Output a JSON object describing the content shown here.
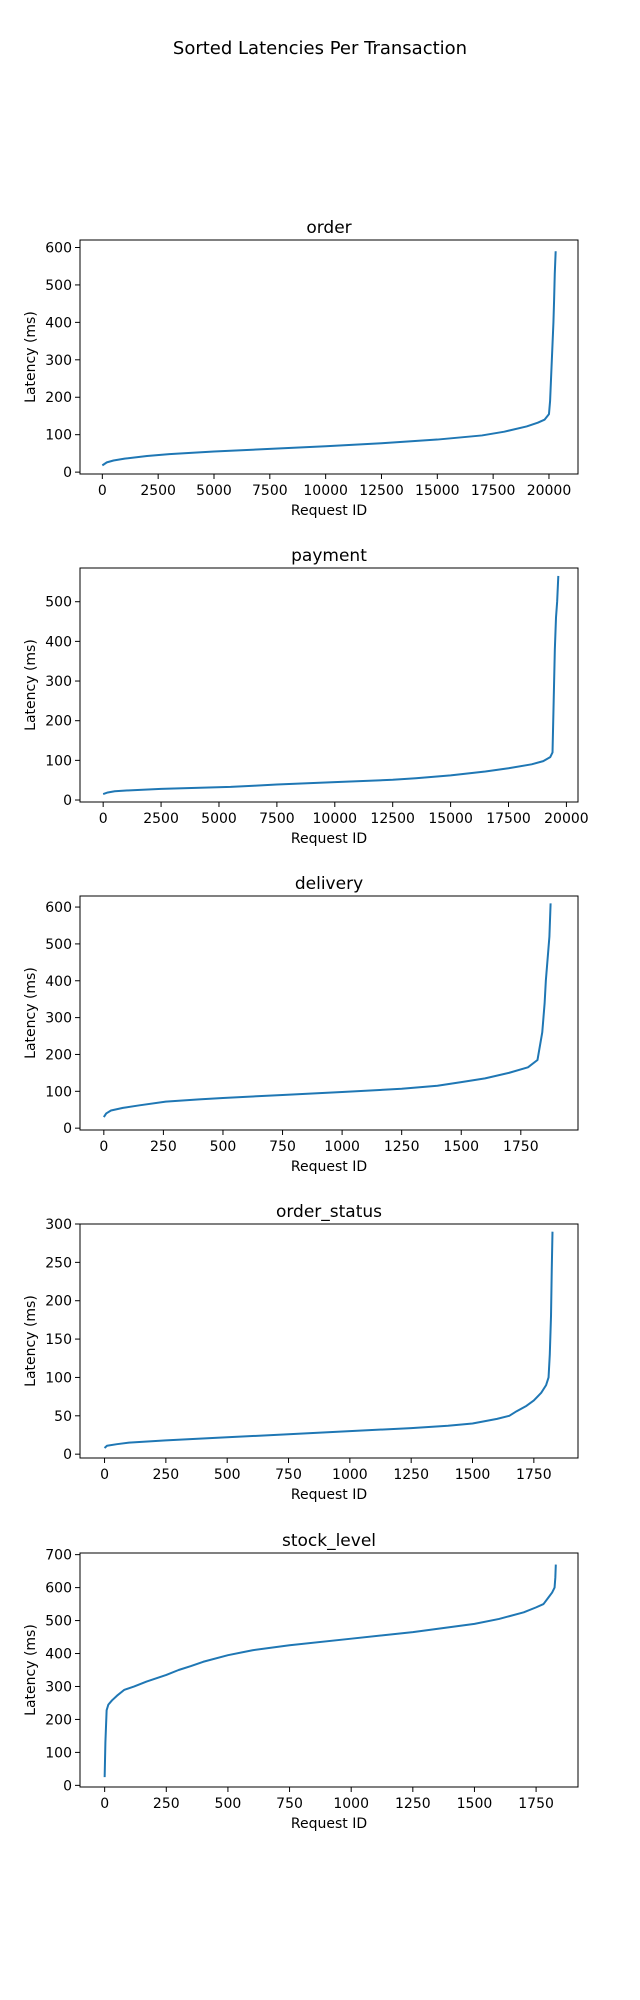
{
  "figure": {
    "suptitle": "Sorted Latencies Per Transaction",
    "line_color": "#1f77b4"
  },
  "chart_data": [
    {
      "type": "line",
      "title": "order",
      "xlabel": "Request ID",
      "ylabel": "Latency (ms)",
      "xlim": [
        -1000,
        21300
      ],
      "ylim": [
        -5,
        620
      ],
      "xticks": [
        0,
        2500,
        5000,
        7500,
        10000,
        12500,
        15000,
        17500,
        20000
      ],
      "yticks": [
        0,
        100,
        200,
        300,
        400,
        500,
        600
      ],
      "x": [
        0,
        200,
        500,
        1000,
        2000,
        3000,
        5000,
        7500,
        10000,
        12500,
        15000,
        17000,
        18000,
        19000,
        19500,
        19800,
        20000,
        20050,
        20100,
        20150,
        20200,
        20230,
        20260,
        20300
      ],
      "y": [
        18,
        26,
        31,
        36,
        43,
        48,
        55,
        62,
        69,
        77,
        87,
        98,
        108,
        122,
        132,
        140,
        155,
        190,
        260,
        330,
        400,
        460,
        530,
        590
      ]
    },
    {
      "type": "line",
      "title": "payment",
      "xlabel": "Request ID",
      "ylabel": "Latency (ms)",
      "xlim": [
        -1000,
        20500
      ],
      "ylim": [
        -5,
        585
      ],
      "xticks": [
        0,
        2500,
        5000,
        7500,
        10000,
        12500,
        15000,
        17500,
        20000
      ],
      "yticks": [
        0,
        100,
        200,
        300,
        400,
        500
      ],
      "x": [
        0,
        200,
        500,
        1000,
        2500,
        5500,
        6500,
        7500,
        10000,
        12500,
        13500,
        15000,
        16500,
        17500,
        18500,
        19000,
        19300,
        19400,
        19450,
        19500,
        19550,
        19600,
        19650
      ],
      "y": [
        15,
        19,
        22,
        24,
        28,
        33,
        36,
        39,
        45,
        51,
        55,
        62,
        72,
        80,
        90,
        98,
        108,
        120,
        250,
        380,
        460,
        500,
        565
      ]
    },
    {
      "type": "line",
      "title": "delivery",
      "xlabel": "Request ID",
      "ylabel": "Latency (ms)",
      "xlim": [
        -100,
        1990
      ],
      "ylim": [
        -5,
        630
      ],
      "xticks": [
        0,
        250,
        500,
        750,
        1000,
        1250,
        1500,
        1750
      ],
      "yticks": [
        0,
        100,
        200,
        300,
        400,
        500,
        600
      ],
      "x": [
        0,
        10,
        30,
        80,
        150,
        260,
        400,
        500,
        750,
        1000,
        1250,
        1400,
        1500,
        1600,
        1700,
        1780,
        1820,
        1840,
        1850,
        1855,
        1860,
        1865,
        1870,
        1875
      ],
      "y": [
        30,
        40,
        48,
        55,
        62,
        72,
        78,
        82,
        90,
        98,
        107,
        115,
        125,
        135,
        150,
        165,
        185,
        260,
        340,
        400,
        440,
        480,
        520,
        610
      ]
    },
    {
      "type": "line",
      "title": "order_status",
      "xlabel": "Request ID",
      "ylabel": "Latency (ms)",
      "xlim": [
        -100,
        1930
      ],
      "ylim": [
        -5,
        300
      ],
      "xticks": [
        0,
        250,
        500,
        750,
        1000,
        1250,
        1500,
        1750
      ],
      "yticks": [
        0,
        50,
        100,
        150,
        200,
        250,
        300
      ],
      "x": [
        0,
        10,
        50,
        100,
        250,
        500,
        750,
        1000,
        1250,
        1400,
        1500,
        1600,
        1650,
        1680,
        1720,
        1750,
        1780,
        1800,
        1810,
        1815,
        1820,
        1823,
        1826
      ],
      "y": [
        8,
        11,
        13,
        15,
        18,
        22,
        26,
        30,
        34,
        37,
        40,
        46,
        50,
        56,
        63,
        70,
        80,
        90,
        100,
        130,
        180,
        240,
        290
      ]
    },
    {
      "type": "line",
      "title": "stock_level",
      "xlabel": "Request ID",
      "ylabel": "Latency (ms)",
      "xlim": [
        -100,
        1920
      ],
      "ylim": [
        -5,
        705
      ],
      "xticks": [
        0,
        250,
        500,
        750,
        1000,
        1250,
        1500,
        1750
      ],
      "yticks": [
        0,
        100,
        200,
        300,
        400,
        500,
        600,
        700
      ],
      "x": [
        0,
        3,
        8,
        15,
        30,
        50,
        80,
        120,
        170,
        250,
        300,
        350,
        400,
        500,
        600,
        750,
        1000,
        1250,
        1500,
        1600,
        1700,
        1750,
        1780,
        1800,
        1815,
        1825,
        1828,
        1830
      ],
      "y": [
        25,
        130,
        228,
        245,
        258,
        272,
        290,
        300,
        315,
        335,
        350,
        362,
        375,
        395,
        410,
        425,
        445,
        465,
        490,
        505,
        525,
        540,
        550,
        570,
        585,
        600,
        630,
        670
      ]
    }
  ]
}
